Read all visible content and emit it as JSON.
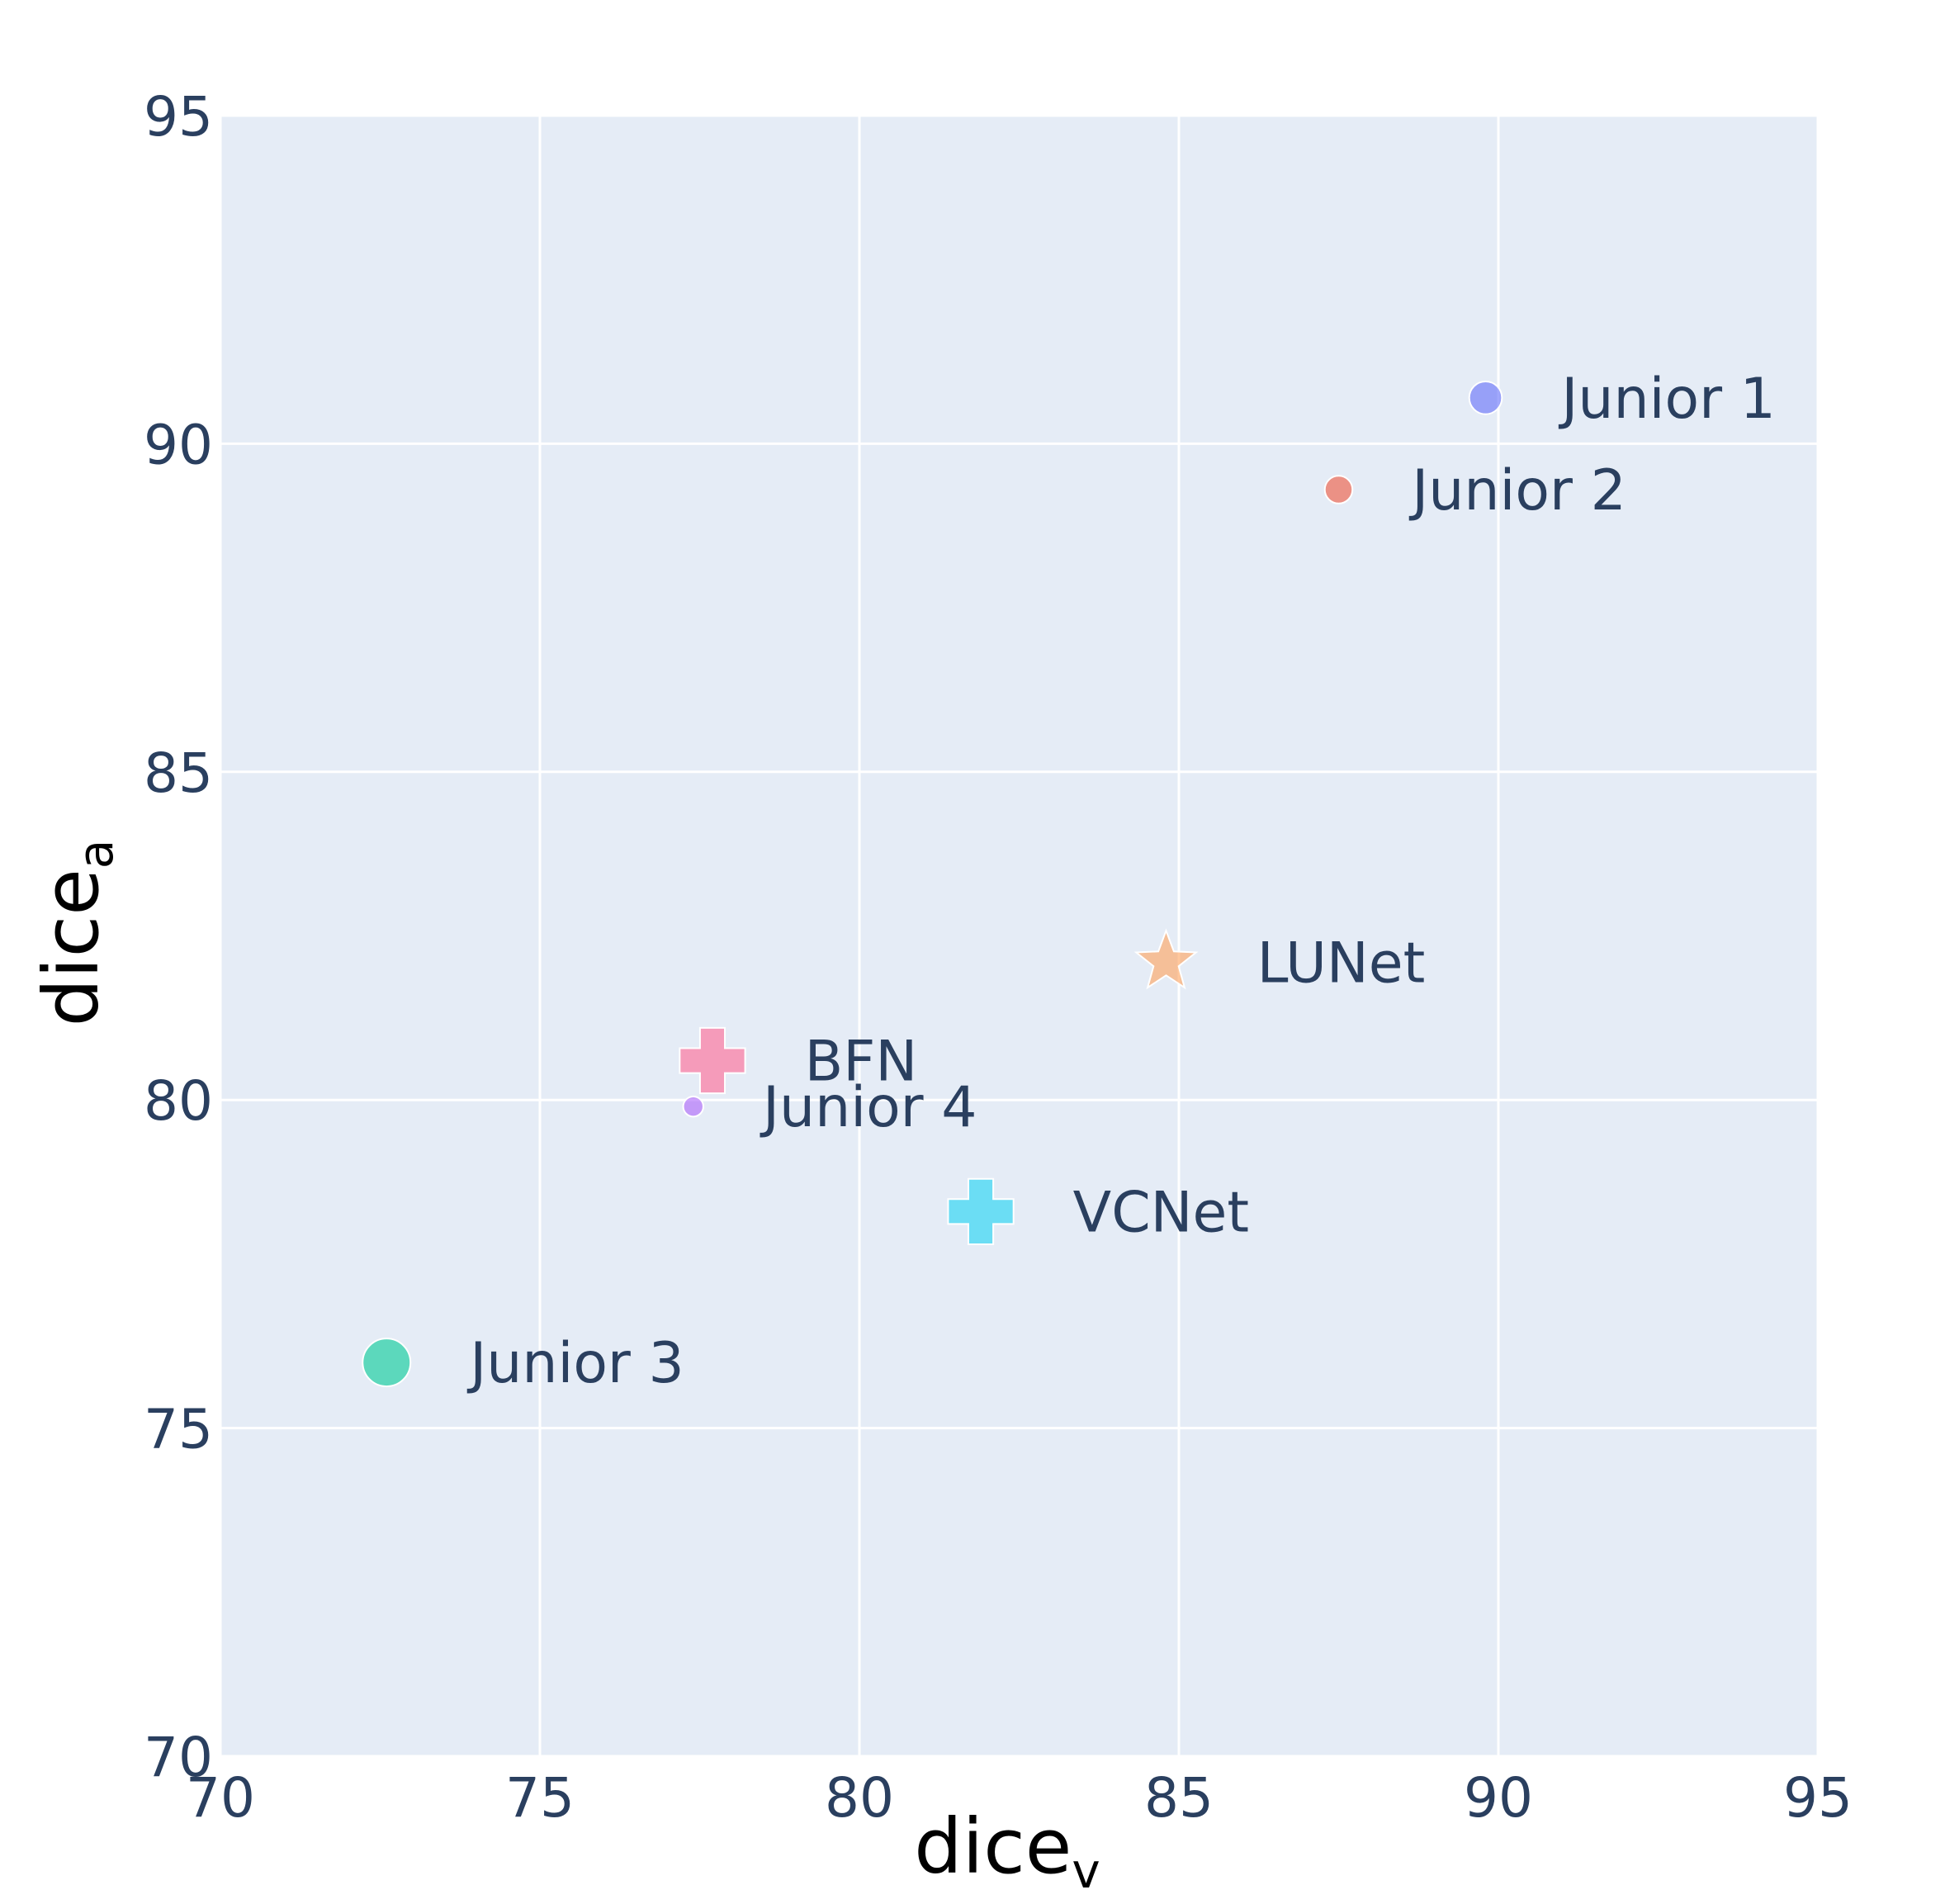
{
  "chart_data": {
    "type": "scatter",
    "xlabel": "dice",
    "xlabel_sub": "v",
    "ylabel": "dice",
    "ylabel_sub": "a",
    "xlim": [
      70,
      95
    ],
    "ylim": [
      70,
      95
    ],
    "xticks": [
      70,
      75,
      80,
      85,
      90,
      95
    ],
    "yticks": [
      70,
      75,
      80,
      85,
      90,
      95
    ],
    "grid": true,
    "series": [
      {
        "name": "Junior 1",
        "color": "#636efa",
        "symbol": "circle",
        "size": 26,
        "x": [
          89.8
        ],
        "values": [
          90.7
        ]
      },
      {
        "name": "Junior 2",
        "color": "#ef553b",
        "symbol": "circle",
        "size": 22,
        "x": [
          87.5
        ],
        "values": [
          89.3
        ]
      },
      {
        "name": "Junior 3",
        "color": "#00cc96",
        "symbol": "circle",
        "size": 38,
        "x": [
          72.6
        ],
        "values": [
          76.0
        ]
      },
      {
        "name": "Junior 4",
        "color": "#ab63fa",
        "symbol": "circle",
        "size": 16,
        "x": [
          77.4
        ],
        "values": [
          79.9
        ]
      },
      {
        "name": "LUNet",
        "color": "#ffa15a",
        "symbol": "star",
        "size": 50,
        "x": [
          84.8
        ],
        "values": [
          82.1
        ]
      },
      {
        "name": "BFN",
        "color": "#ff6692",
        "symbol": "cross",
        "size": 52,
        "x": [
          77.7
        ],
        "values": [
          80.6
        ]
      },
      {
        "name": "VCNet",
        "color": "#19d3f3",
        "symbol": "cross",
        "size": 52,
        "x": [
          81.9
        ],
        "values": [
          78.3
        ]
      }
    ]
  }
}
